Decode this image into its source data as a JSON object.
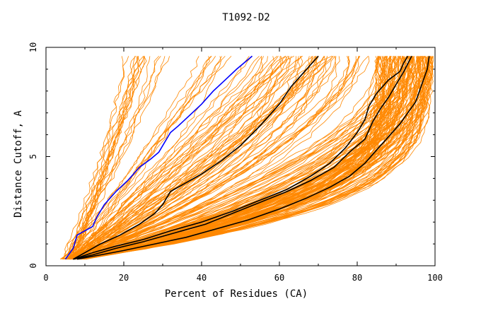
{
  "chart_data": {
    "type": "line",
    "title": "T1092-D2",
    "xlabel": "Percent of Residues (CA)",
    "ylabel": "Distance Cutoff, A",
    "xlim": [
      0,
      100
    ],
    "ylim": [
      0,
      10
    ],
    "x_ticks": [
      "0",
      "20",
      "40",
      "60",
      "80",
      "100"
    ],
    "y_ticks": [
      "0",
      "5",
      "10"
    ],
    "grid": false,
    "colors": {
      "background_models": "#ff8800",
      "highlighted_blue": "#0000ff",
      "highlighted_black": "#000000"
    },
    "series": [
      {
        "color": "#0000ff",
        "x": [
          5,
          7,
          8,
          12,
          13,
          15,
          18,
          21,
          24,
          27,
          29,
          32,
          34,
          37,
          40,
          43,
          46,
          49,
          53
        ],
        "y": [
          0.3,
          0.8,
          1.4,
          1.8,
          2.2,
          2.8,
          3.4,
          3.9,
          4.5,
          4.9,
          5.2,
          6.1,
          6.4,
          6.9,
          7.4,
          8.0,
          8.5,
          9.0,
          9.6
        ]
      },
      {
        "color": "#000000",
        "x": [
          7,
          10,
          14,
          19,
          24,
          28,
          30,
          32,
          35,
          40,
          45,
          50,
          55,
          60,
          63,
          65,
          67,
          69,
          70
        ],
        "y": [
          0.3,
          0.6,
          1.0,
          1.4,
          1.9,
          2.4,
          2.8,
          3.4,
          3.7,
          4.2,
          4.8,
          5.5,
          6.4,
          7.4,
          8.2,
          8.6,
          9.0,
          9.4,
          9.6
        ]
      },
      {
        "color": "#000000",
        "x": [
          7,
          12,
          18,
          25,
          32,
          40,
          48,
          55,
          62,
          68,
          73,
          77,
          80,
          82,
          83,
          85,
          88,
          91,
          92,
          93
        ],
        "y": [
          0.3,
          0.6,
          0.9,
          1.2,
          1.6,
          2.0,
          2.5,
          3.0,
          3.5,
          4.1,
          4.7,
          5.4,
          6.1,
          6.7,
          7.3,
          7.9,
          8.5,
          8.9,
          9.3,
          9.6
        ]
      },
      {
        "color": "#000000",
        "x": [
          7,
          12,
          18,
          25,
          33,
          41,
          48,
          55,
          62,
          68,
          74,
          78,
          82,
          84,
          86,
          88,
          90,
          92,
          94
        ],
        "y": [
          0.3,
          0.5,
          0.8,
          1.1,
          1.5,
          1.9,
          2.4,
          2.9,
          3.4,
          3.9,
          4.5,
          5.2,
          5.8,
          6.6,
          7.2,
          7.7,
          8.3,
          8.9,
          9.6
        ]
      },
      {
        "color": "#000000",
        "x": [
          8,
          14,
          20,
          28,
          36,
          44,
          52,
          60,
          67,
          73,
          78,
          82,
          85,
          88,
          91,
          93,
          95,
          96,
          97,
          98,
          98.5
        ],
        "y": [
          0.3,
          0.5,
          0.7,
          1.0,
          1.3,
          1.7,
          2.1,
          2.6,
          3.1,
          3.6,
          4.1,
          4.7,
          5.3,
          5.9,
          6.5,
          7.0,
          7.5,
          8.0,
          8.5,
          9.0,
          9.6
        ]
      }
    ],
    "background_series_note_count": 220
  }
}
